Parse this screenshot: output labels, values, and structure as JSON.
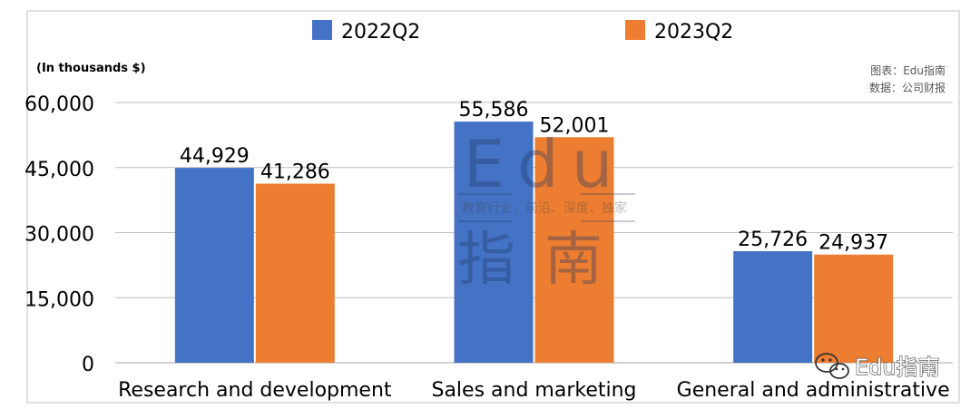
{
  "chart_data": {
    "type": "bar",
    "categories": [
      "Research and development",
      "Sales and marketing",
      "General and administrative"
    ],
    "series": [
      {
        "name": "2022Q2",
        "values": [
          44929,
          55586,
          25726
        ],
        "color": "#4472c4"
      },
      {
        "name": "2023Q2",
        "values": [
          41286,
          52001,
          24937
        ],
        "color": "#ed7d31"
      }
    ],
    "value_labels": [
      [
        "44,929",
        "55,586",
        "25,726"
      ],
      [
        "41,286",
        "52,001",
        "24,937"
      ]
    ],
    "ylabel": "(In thousands $)",
    "ylim": [
      0,
      60000
    ],
    "yticks": [
      0,
      15000,
      30000,
      45000,
      60000
    ],
    "ytick_labels": [
      "0",
      "15,000",
      "30,000",
      "45,000",
      "60,000"
    ],
    "grid": true,
    "legend_position": "top-center",
    "source_note": [
      "图表：Edu指南",
      "数据：公司财报"
    ]
  },
  "watermark": {
    "brand_en": "Edu",
    "brand_cn": "指南",
    "tagline": "教育行业，前沿、深度、独家",
    "wechat_label": "Edu指南"
  }
}
